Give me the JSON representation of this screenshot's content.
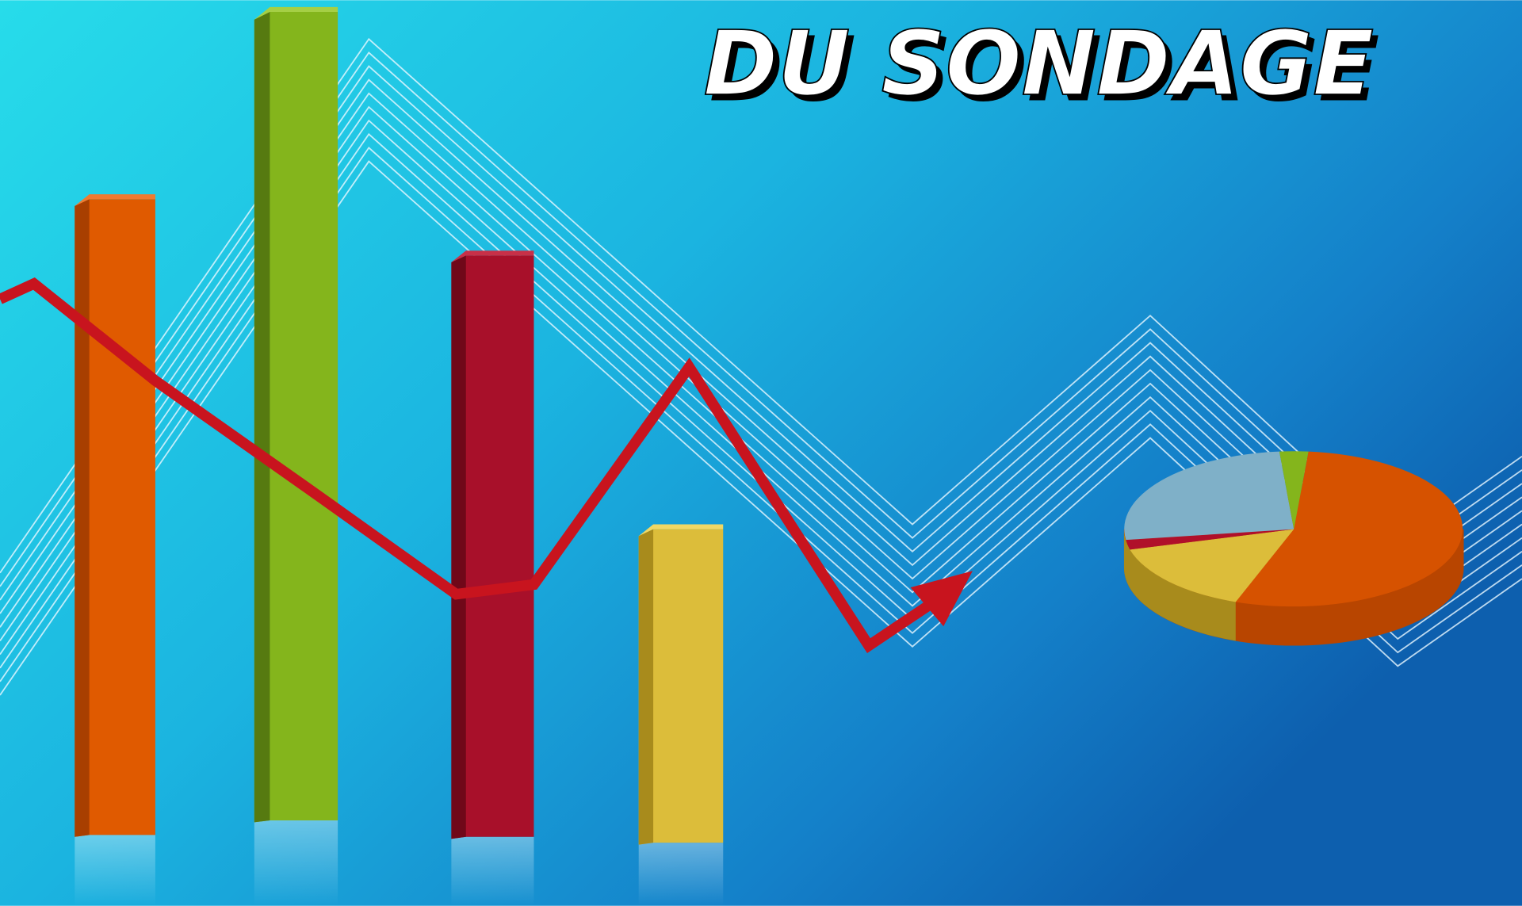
{
  "title": "DU SONDAGE"
}
